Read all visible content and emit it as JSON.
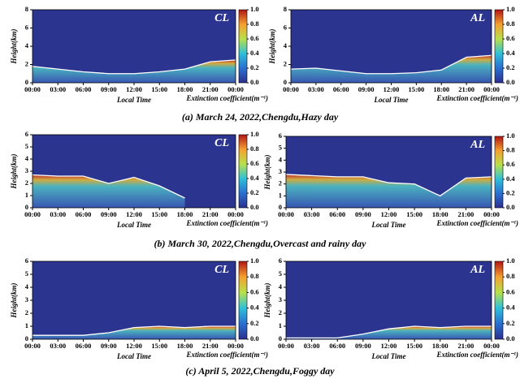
{
  "chart_data": [
    {
      "type": "line",
      "label": "CL",
      "ylabel": "Height(km)",
      "xlabel": "Local Time",
      "colorbar_label": "Extinction coefficient(m⁻¹)",
      "categories": [
        "00:00",
        "03:00",
        "06:00",
        "09:00",
        "12:00",
        "15:00",
        "18:00",
        "21:00",
        "00:00"
      ],
      "series": [
        {
          "color": "#ffffff",
          "values": [
            1.8,
            1.5,
            1.2,
            1.0,
            1.0,
            1.2,
            1.5,
            2.3,
            2.5
          ]
        }
      ],
      "ylim": [
        0,
        8
      ],
      "yticks": [
        0,
        2,
        4,
        6,
        8
      ],
      "colorbar_lim": [
        0,
        1
      ],
      "colorbar_ticks": [
        {
          "value": 0,
          "label": "0.0"
        },
        0.2,
        0.4,
        0.6,
        0.8,
        {
          "value": 1,
          "label": "1.0"
        }
      ]
    },
    {
      "type": "line",
      "label": "AL",
      "ylabel": "Height(km)",
      "xlabel": "Local Time",
      "colorbar_label": "Extinction coefficient(m⁻¹)",
      "categories": [
        "00:00",
        "03:00",
        "06:00",
        "09:00",
        "12:00",
        "15:00",
        "18:00",
        "21:00",
        "00:00"
      ],
      "series": [
        {
          "color": "#ffffff",
          "values": [
            1.5,
            1.6,
            1.3,
            1.0,
            1.0,
            1.1,
            1.4,
            2.8,
            3.0
          ]
        }
      ],
      "ylim": [
        0,
        8
      ],
      "yticks": [
        0,
        2,
        4,
        6,
        8
      ],
      "colorbar_lim": [
        0,
        1
      ],
      "colorbar_ticks": [
        {
          "value": 0,
          "label": "0.0"
        },
        0.2,
        0.4,
        0.6,
        0.8,
        {
          "value": 1,
          "label": "1.0"
        }
      ]
    },
    {
      "type": "line",
      "label": "CL",
      "ylabel": "Height(km)",
      "xlabel": "Local Time",
      "colorbar_label": "Extinction coefficient(m⁻¹)",
      "categories": [
        "00:00",
        "03:00",
        "06:00",
        "09:00",
        "12:00",
        "15:00",
        "18:00",
        "21:00",
        "00:00"
      ],
      "series": [
        {
          "color": "#ffffff",
          "values": [
            2.7,
            2.6,
            2.6,
            2.0,
            2.5,
            1.8,
            0.8,
            null,
            null
          ]
        }
      ],
      "ylim": [
        0,
        6
      ],
      "yticks": [
        0,
        1,
        2,
        3,
        4,
        5,
        6
      ],
      "colorbar_lim": [
        0,
        1
      ],
      "colorbar_ticks": [
        {
          "value": 0,
          "label": "0.0"
        },
        0.2,
        0.4,
        0.6,
        0.8,
        {
          "value": 1,
          "label": "1.0"
        }
      ]
    },
    {
      "type": "line",
      "label": "AL",
      "ylabel": "Height(km)",
      "xlabel": "Local Time",
      "colorbar_label": "Extinction coefficient(m⁻¹)",
      "categories": [
        "00:00",
        "03:00",
        "06:00",
        "09:00",
        "12:00",
        "15:00",
        "18:00",
        "21:00",
        "00:00"
      ],
      "series": [
        {
          "color": "#ffffff",
          "values": [
            2.8,
            2.7,
            2.6,
            2.6,
            2.1,
            2.0,
            1.0,
            2.5,
            2.6
          ]
        }
      ],
      "ylim": [
        0,
        6
      ],
      "yticks": [
        0,
        1,
        2,
        3,
        4,
        5,
        6
      ],
      "colorbar_lim": [
        0,
        1
      ],
      "colorbar_ticks": [
        {
          "value": 0,
          "label": "0.0"
        },
        0.2,
        0.4,
        0.6,
        0.8,
        {
          "value": 1,
          "label": "1.0"
        }
      ]
    },
    {
      "type": "line",
      "label": "CL",
      "ylabel": "Height(km)",
      "xlabel": "Local Time",
      "colorbar_label": "Extinction coefficient(m⁻¹)",
      "categories": [
        "00:00",
        "03:00",
        "06:00",
        "09:00",
        "12:00",
        "15:00",
        "18:00",
        "21:00",
        "00:00"
      ],
      "series": [
        {
          "color": "#ffffff",
          "values": [
            0.3,
            0.3,
            0.3,
            0.5,
            0.9,
            1.0,
            0.9,
            1.0,
            1.0
          ]
        }
      ],
      "ylim": [
        0,
        6
      ],
      "yticks": [
        0,
        1,
        2,
        3,
        4,
        5,
        6
      ],
      "colorbar_lim": [
        0,
        1
      ],
      "colorbar_ticks": [
        {
          "value": 0,
          "label": "0.0"
        },
        0.2,
        0.4,
        0.6,
        0.8,
        {
          "value": 1,
          "label": "1.0"
        }
      ]
    },
    {
      "type": "line",
      "label": "AL",
      "ylabel": "Height(km)",
      "xlabel": "Local Time",
      "colorbar_label": "Extinction coefficient(m⁻¹)",
      "categories": [
        "00:00",
        "03:00",
        "06:00",
        "09:00",
        "12:00",
        "15:00",
        "18:00",
        "21:00",
        "00:00"
      ],
      "series": [
        {
          "color": "#ffffff",
          "values": [
            0.1,
            0.1,
            0.1,
            0.4,
            0.8,
            1.0,
            0.9,
            1.0,
            1.0
          ]
        }
      ],
      "ylim": [
        0,
        6
      ],
      "yticks": [
        0,
        1,
        2,
        3,
        4,
        5,
        6
      ],
      "colorbar_lim": [
        0,
        1
      ],
      "colorbar_ticks": [
        {
          "value": 0,
          "label": "0.0"
        },
        0.2,
        0.4,
        0.6,
        0.8,
        {
          "value": 1,
          "label": "1.0"
        }
      ]
    }
  ],
  "captions": [
    "(a) March 24, 2022,Chengdu,Hazy day",
    "(b) March 30, 2022,Chengdu,Overcast and rainy day",
    "(c) April 5, 2022,Chengdu,Foggy day"
  ]
}
